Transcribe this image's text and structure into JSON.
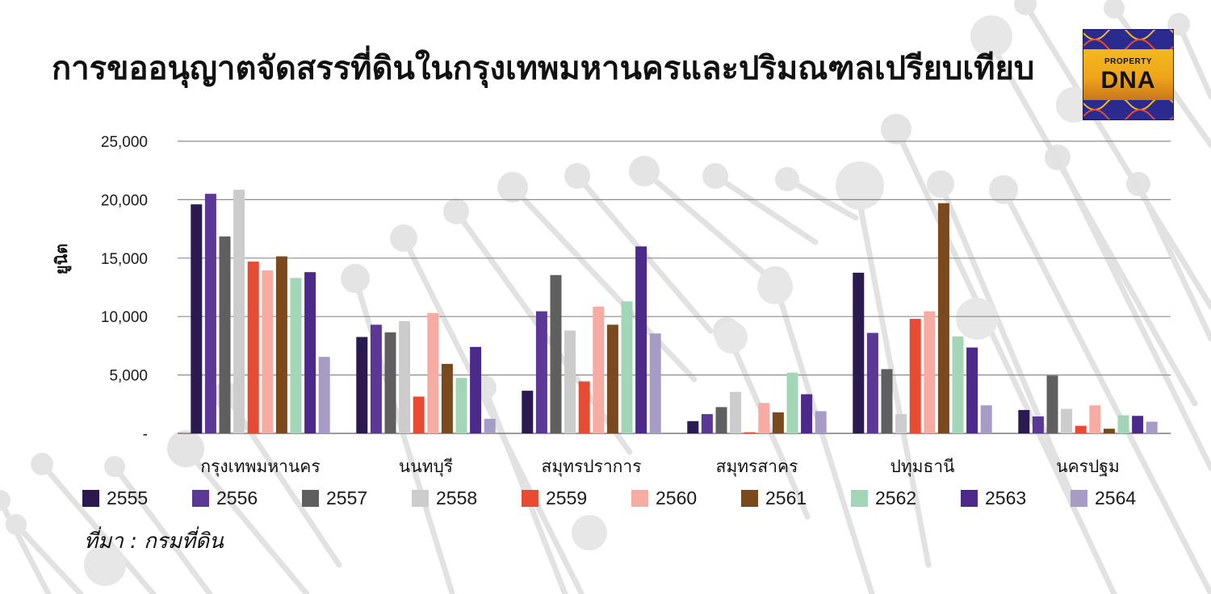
{
  "header": {
    "title": "การขออนุญาตจัดสรรที่ดินในกรุงเทพมหานครและปริมณฑลเปรียบเทียบ"
  },
  "logo": {
    "line1": "PROPERTY",
    "line2": "DNA"
  },
  "source": "ที่มา : กรมที่ดิน",
  "chart_data": {
    "type": "bar",
    "title": "การขออนุญาตจัดสรรที่ดินในกรุงเทพมหานครและปริมณฑลเปรียบเทียบ",
    "xlabel": "",
    "ylabel": "ยูนิต",
    "ylim": [
      0,
      25000
    ],
    "yticks": [
      0,
      5000,
      10000,
      15000,
      20000,
      25000
    ],
    "ytick_labels": [
      "-",
      "5,000",
      "10,000",
      "15,000",
      "20,000",
      "25,000"
    ],
    "grid": true,
    "legend_position": "bottom",
    "categories": [
      "กรุงเทพมหานคร",
      "นนทบุรี",
      "สมุทรปราการ",
      "สมุทรสาคร",
      "ปทุมธานี",
      "นครปฐม"
    ],
    "series": [
      {
        "name": "2555",
        "color": "#2b1a4f",
        "values": [
          19600,
          8250,
          3650,
          1050,
          13750,
          2000
        ]
      },
      {
        "name": "2556",
        "color": "#5b3796",
        "values": [
          20500,
          9300,
          10450,
          1650,
          8600,
          1450
        ]
      },
      {
        "name": "2557",
        "color": "#5f5f5f",
        "values": [
          16850,
          8650,
          13550,
          2250,
          5500,
          4950
        ]
      },
      {
        "name": "2558",
        "color": "#cccccc",
        "values": [
          20850,
          9600,
          8800,
          3550,
          1650,
          2100
        ]
      },
      {
        "name": "2559",
        "color": "#e84b33",
        "values": [
          14700,
          3150,
          4450,
          100,
          9800,
          650
        ]
      },
      {
        "name": "2560",
        "color": "#f7aca3",
        "values": [
          13950,
          10300,
          10850,
          2600,
          10450,
          2400
        ]
      },
      {
        "name": "2561",
        "color": "#7a4a1e",
        "values": [
          15150,
          5950,
          9300,
          1800,
          19700,
          400
        ]
      },
      {
        "name": "2562",
        "color": "#a3d6b7",
        "values": [
          13300,
          4750,
          11300,
          5200,
          8300,
          1550
        ]
      },
      {
        "name": "2563",
        "color": "#4c2a8c",
        "values": [
          13800,
          7400,
          16000,
          3350,
          7350,
          1500
        ]
      },
      {
        "name": "2564",
        "color": "#a79cc6",
        "values": [
          6550,
          1250,
          8550,
          1900,
          2400,
          1000
        ]
      }
    ]
  }
}
